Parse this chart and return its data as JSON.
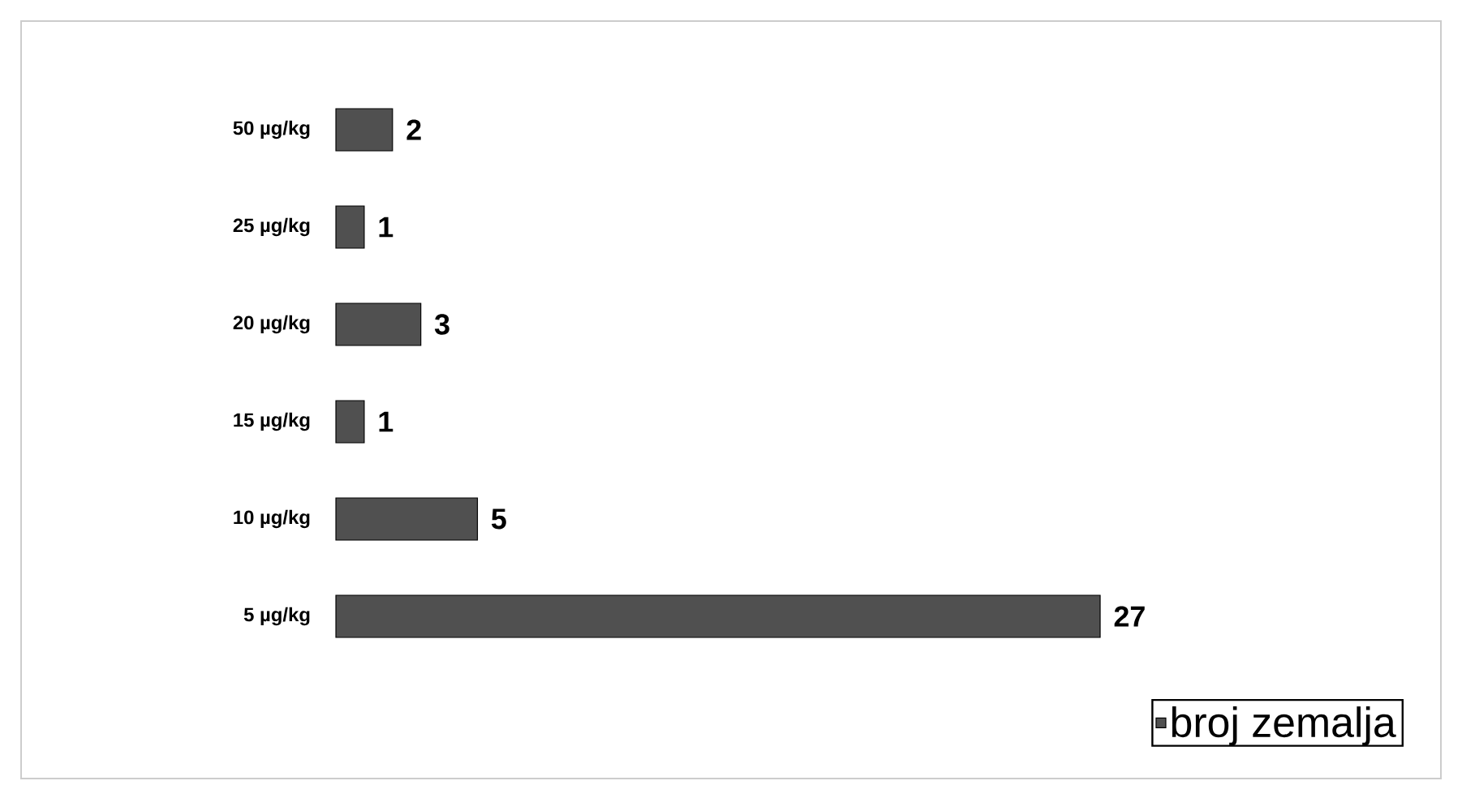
{
  "chart_data": {
    "type": "bar",
    "orientation": "horizontal",
    "categories": [
      "50 µg/kg",
      "25 µg/kg",
      "20 µg/kg",
      "15 µg/kg",
      "10 µg/kg",
      "5 µg/kg"
    ],
    "series": [
      {
        "name": "broj zemalja",
        "color": "#505050",
        "values": [
          2,
          1,
          3,
          1,
          5,
          27
        ]
      }
    ],
    "data_labels": true,
    "legend": "bottom right",
    "tick_labels": "y"
  }
}
